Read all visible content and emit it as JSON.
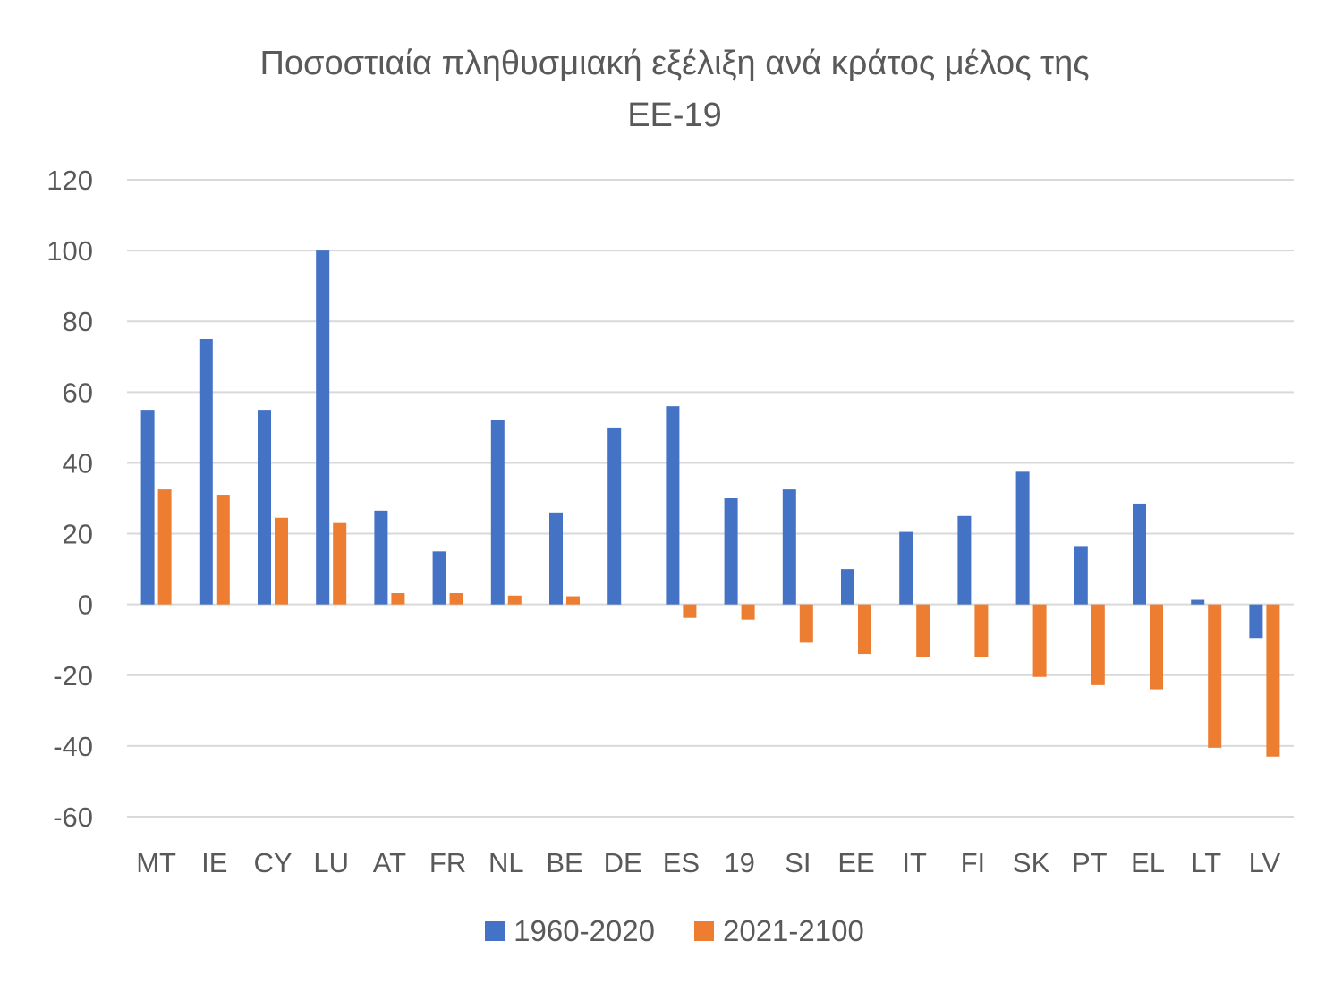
{
  "chart_data": {
    "type": "bar",
    "title_line1": "Ποσοστιαία πληθυσμιακή εξέλιξη ανά κράτος μέλος της",
    "title_line2": "ΕΕ-19",
    "xlabel": "",
    "ylabel": "",
    "ylim": [
      -60,
      120
    ],
    "yticks": [
      120,
      100,
      80,
      60,
      40,
      20,
      0,
      -20,
      -40,
      -60
    ],
    "grid": true,
    "legend_position": "bottom",
    "categories": [
      "MT",
      "IE",
      "CY",
      "LU",
      "AT",
      "FR",
      "NL",
      "BE",
      "DE",
      "ES",
      "19",
      "SI",
      "EE",
      "IT",
      "FI",
      "SK",
      "PT",
      "EL",
      "LT",
      "LV"
    ],
    "series": [
      {
        "name": "1960-2020",
        "color": "#4472c4",
        "values": [
          55,
          75,
          55,
          100,
          26.5,
          15,
          52,
          26,
          50,
          56,
          30,
          32.5,
          10,
          20.5,
          25,
          37.5,
          16.5,
          28.5,
          1.3,
          -9.5
        ]
      },
      {
        "name": "2021-2100",
        "color": "#ed7d31",
        "values": [
          32.5,
          31,
          24.5,
          23,
          3.2,
          3.2,
          2.5,
          2.3,
          0,
          -3.8,
          -4.3,
          -10.8,
          -14,
          -14.8,
          -14.8,
          -20.5,
          -22.8,
          -24,
          -40.5,
          -43
        ]
      }
    ]
  }
}
